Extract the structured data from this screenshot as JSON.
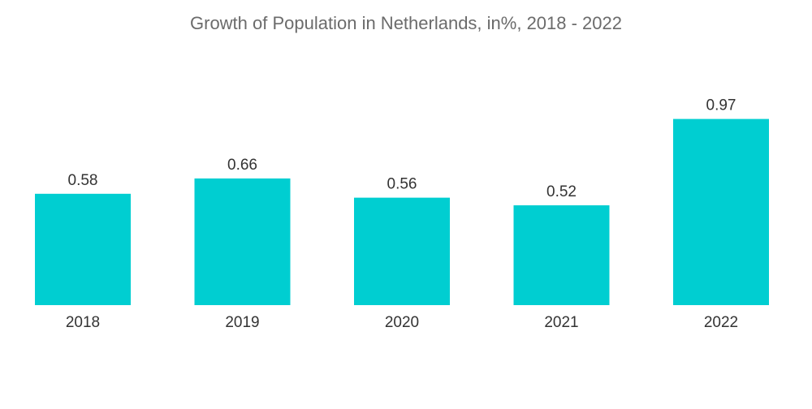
{
  "chart_data": {
    "type": "bar",
    "title": "Growth of Population in Netherlands, in%, 2018 - 2022",
    "categories": [
      "2018",
      "2019",
      "2020",
      "2021",
      "2022"
    ],
    "values": [
      0.58,
      0.66,
      0.56,
      0.52,
      0.97
    ],
    "value_labels": [
      "0.58",
      "0.66",
      "0.56",
      "0.52",
      "0.97"
    ],
    "xlabel": "",
    "ylabel": "",
    "ylim": [
      0,
      1.0
    ],
    "grid": false,
    "bar_color": "#00CED1"
  }
}
